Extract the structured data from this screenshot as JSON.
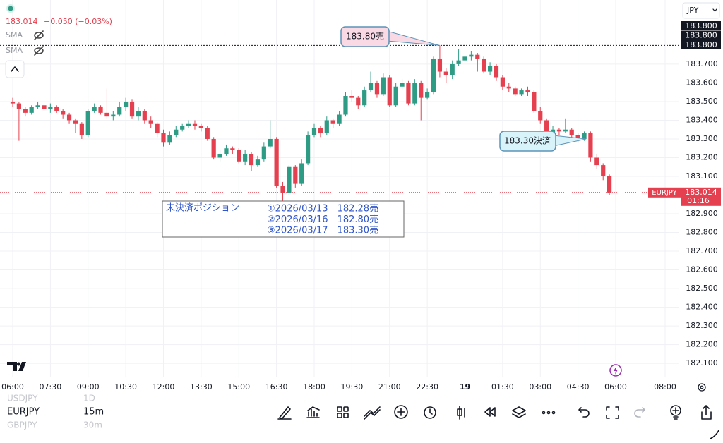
{
  "header": {
    "price": "183.014",
    "change": "−0.050 (−0.03%)",
    "indicators": [
      "SMA",
      "SMA"
    ],
    "currency": "JPY"
  },
  "chart_data": {
    "type": "candlestick",
    "up_color": "#2e9b85",
    "down_color": "#e5404f",
    "ylim": [
      182.025,
      184.043
    ],
    "yticks": [
      {
        "value": 182.1,
        "label": "182.100"
      },
      {
        "value": 182.2,
        "label": "182.200"
      },
      {
        "value": 182.3,
        "label": "182.300"
      },
      {
        "value": 182.4,
        "label": "182.400"
      },
      {
        "value": 182.5,
        "label": "182.500"
      },
      {
        "value": 182.6,
        "label": "182.600"
      },
      {
        "value": 182.7,
        "label": "182.700"
      },
      {
        "value": 182.8,
        "label": "182.800"
      },
      {
        "value": 182.9,
        "label": "182.900"
      },
      {
        "value": 183.1,
        "label": "183.100"
      },
      {
        "value": 183.2,
        "label": "183.200"
      },
      {
        "value": 183.3,
        "label": "183.300"
      },
      {
        "value": 183.4,
        "label": "183.400"
      },
      {
        "value": 183.5,
        "label": "183.500"
      },
      {
        "value": 183.6,
        "label": "183.600"
      },
      {
        "value": 183.7,
        "label": "183.700"
      }
    ],
    "markers": [
      {
        "value": 183.8,
        "label": "183.800"
      },
      {
        "value": 183.8,
        "label": "183.800"
      },
      {
        "value": 183.8,
        "label": "183.800"
      }
    ],
    "current": {
      "value": 183.014,
      "label": "183.014",
      "symbol": "EURJPY",
      "countdown": "01:16"
    },
    "categories": [
      "06:00",
      "07:30",
      "09:00",
      "10:30",
      "12:00",
      "13:30",
      "15:00",
      "16:30",
      "18:00",
      "19:30",
      "21:00",
      "22:30",
      "19",
      "01:30",
      "03:00",
      "04:30",
      "06:00",
      "08:00"
    ],
    "ohlc": [
      [
        183.5,
        183.52,
        183.47,
        183.49
      ],
      [
        183.49,
        183.5,
        183.29,
        183.46
      ],
      [
        183.46,
        183.47,
        183.42,
        183.44
      ],
      [
        183.44,
        183.48,
        183.43,
        183.47
      ],
      [
        183.47,
        183.5,
        183.46,
        183.48
      ],
      [
        183.48,
        183.49,
        183.45,
        183.46
      ],
      [
        183.46,
        183.49,
        183.44,
        183.47
      ],
      [
        183.47,
        183.48,
        183.44,
        183.45
      ],
      [
        183.45,
        183.46,
        183.41,
        183.43
      ],
      [
        183.43,
        183.44,
        183.38,
        183.4
      ],
      [
        183.4,
        183.41,
        183.33,
        183.38
      ],
      [
        183.38,
        183.39,
        183.3,
        183.32
      ],
      [
        183.32,
        183.46,
        183.31,
        183.45
      ],
      [
        183.45,
        183.49,
        183.44,
        183.47
      ],
      [
        183.47,
        183.48,
        183.43,
        183.44
      ],
      [
        183.44,
        183.57,
        183.41,
        183.42
      ],
      [
        183.42,
        183.45,
        183.4,
        183.43
      ],
      [
        183.43,
        183.5,
        183.42,
        183.47
      ],
      [
        183.47,
        183.52,
        183.45,
        183.5
      ],
      [
        183.5,
        183.51,
        183.41,
        183.42
      ],
      [
        183.42,
        183.47,
        183.4,
        183.45
      ],
      [
        183.45,
        183.46,
        183.38,
        183.4
      ],
      [
        183.4,
        183.42,
        183.36,
        183.38
      ],
      [
        183.38,
        183.39,
        183.31,
        183.33
      ],
      [
        183.33,
        183.35,
        183.26,
        183.28
      ],
      [
        183.28,
        183.34,
        183.27,
        183.32
      ],
      [
        183.32,
        183.37,
        183.31,
        183.35
      ],
      [
        183.35,
        183.38,
        183.34,
        183.37
      ],
      [
        183.37,
        183.4,
        183.36,
        183.38
      ],
      [
        183.38,
        183.4,
        183.35,
        183.37
      ],
      [
        183.37,
        183.38,
        183.34,
        183.36
      ],
      [
        183.36,
        183.37,
        183.29,
        183.3
      ],
      [
        183.3,
        183.31,
        183.19,
        183.2
      ],
      [
        183.2,
        183.24,
        183.18,
        183.22
      ],
      [
        183.22,
        183.27,
        183.21,
        183.25
      ],
      [
        183.25,
        183.26,
        183.22,
        183.24
      ],
      [
        183.24,
        183.25,
        183.17,
        183.18
      ],
      [
        183.18,
        183.24,
        183.16,
        183.22
      ],
      [
        183.22,
        183.23,
        183.13,
        183.16
      ],
      [
        183.16,
        183.21,
        183.15,
        183.19
      ],
      [
        183.19,
        183.28,
        183.18,
        183.26
      ],
      [
        183.26,
        183.4,
        183.25,
        183.3
      ],
      [
        183.3,
        183.31,
        183.04,
        183.05
      ],
      [
        183.05,
        183.07,
        182.97,
        183.01
      ],
      [
        183.01,
        183.16,
        183.0,
        183.15
      ],
      [
        183.15,
        183.16,
        183.04,
        183.06
      ],
      [
        183.06,
        183.19,
        183.05,
        183.17
      ],
      [
        183.17,
        183.34,
        183.16,
        183.32
      ],
      [
        183.32,
        183.38,
        183.31,
        183.36
      ],
      [
        183.36,
        183.37,
        183.31,
        183.33
      ],
      [
        183.33,
        183.42,
        183.32,
        183.4
      ],
      [
        183.4,
        183.41,
        183.36,
        183.38
      ],
      [
        183.38,
        183.45,
        183.37,
        183.43
      ],
      [
        183.43,
        183.55,
        183.42,
        183.53
      ],
      [
        183.53,
        183.56,
        183.5,
        183.52
      ],
      [
        183.52,
        183.53,
        183.46,
        183.48
      ],
      [
        183.48,
        183.58,
        183.47,
        183.56
      ],
      [
        183.56,
        183.66,
        183.55,
        183.6
      ],
      [
        183.6,
        183.61,
        183.52,
        183.54
      ],
      [
        183.54,
        183.65,
        183.53,
        183.63
      ],
      [
        183.63,
        183.64,
        183.47,
        183.48
      ],
      [
        183.48,
        183.6,
        183.47,
        183.58
      ],
      [
        183.58,
        183.62,
        183.56,
        183.6
      ],
      [
        183.6,
        183.61,
        183.48,
        183.49
      ],
      [
        183.49,
        183.62,
        183.48,
        183.6
      ],
      [
        183.6,
        183.61,
        183.4,
        183.52
      ],
      [
        183.52,
        183.57,
        183.51,
        183.55
      ],
      [
        183.55,
        183.74,
        183.54,
        183.73
      ],
      [
        183.73,
        183.8,
        183.63,
        183.66
      ],
      [
        183.66,
        183.68,
        183.6,
        183.64
      ],
      [
        183.64,
        183.72,
        183.62,
        183.7
      ],
      [
        183.7,
        183.78,
        183.69,
        183.72
      ],
      [
        183.72,
        183.76,
        183.71,
        183.74
      ],
      [
        183.74,
        183.77,
        183.72,
        183.75
      ],
      [
        183.75,
        183.76,
        183.66,
        183.73
      ],
      [
        183.73,
        183.74,
        183.65,
        183.66
      ],
      [
        183.66,
        183.71,
        183.64,
        183.69
      ],
      [
        183.69,
        183.7,
        183.61,
        183.63
      ],
      [
        183.63,
        183.64,
        183.56,
        183.58
      ],
      [
        183.58,
        183.6,
        183.55,
        183.57
      ],
      [
        183.57,
        183.58,
        183.53,
        183.54
      ],
      [
        183.54,
        183.57,
        183.53,
        183.56
      ],
      [
        183.56,
        183.58,
        183.53,
        183.55
      ],
      [
        183.55,
        183.56,
        183.44,
        183.45
      ],
      [
        183.45,
        183.47,
        183.38,
        183.4
      ],
      [
        183.4,
        183.41,
        183.3,
        183.31
      ],
      [
        183.31,
        183.37,
        183.3,
        183.35
      ],
      [
        183.35,
        183.36,
        183.32,
        183.34
      ],
      [
        183.34,
        183.41,
        183.33,
        183.35
      ],
      [
        183.35,
        183.36,
        183.3,
        183.32
      ],
      [
        183.32,
        183.33,
        183.28,
        183.3
      ],
      [
        183.3,
        183.34,
        183.29,
        183.33
      ],
      [
        183.33,
        183.34,
        183.18,
        183.2
      ],
      [
        183.2,
        183.22,
        183.14,
        183.16
      ],
      [
        183.16,
        183.17,
        183.08,
        183.1
      ],
      [
        183.1,
        183.11,
        183.0,
        183.014
      ]
    ],
    "annotations": [
      {
        "text": "183.80売",
        "value": 183.8
      },
      {
        "text": "183.30決済",
        "value": 183.3
      }
    ],
    "positions": {
      "title": "未決済ポジション",
      "lines": [
        "①2026/03/13　182.28売",
        "②2026/03/16　182.80売",
        "③2026/03/17　183.30売"
      ]
    }
  },
  "toolbar": {
    "symbols": [
      {
        "symbol": "USDJPY",
        "interval": "1D"
      },
      {
        "symbol": "EURJPY",
        "interval": "15m"
      },
      {
        "symbol": "GBPJPY",
        "interval": "30m"
      }
    ]
  }
}
